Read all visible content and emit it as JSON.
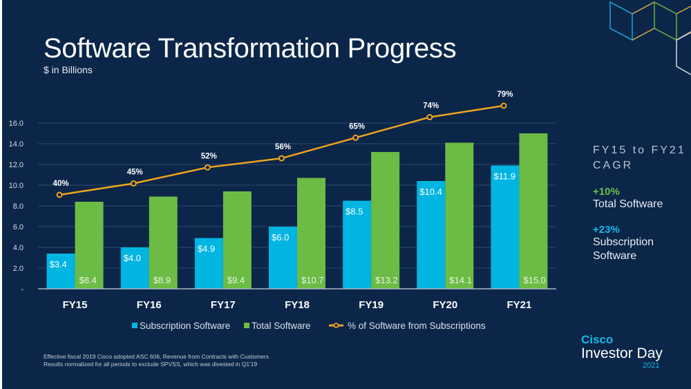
{
  "slide": {
    "title": "Software Transformation Progress",
    "subtitle": "$ in Billions",
    "footnote": [
      "Effective fiscal 2019 Cisco adopted ASC 606, Revenue from Contracts with Customers",
      "Results normalized for all periods to exclude SPVSS, which was divested in Q1'19"
    ],
    "cagr": {
      "title": "FY15 to FY21 CAGR",
      "items": [
        {
          "value": "+10%",
          "label_line1": "Total Software",
          "label_line2": "",
          "color": "#6cc04a"
        },
        {
          "value": "+23%",
          "label_line1": "Subscription",
          "label_line2": "Software",
          "color": "#1ab7ea"
        }
      ]
    },
    "brand": {
      "company": "Cisco",
      "event": "Investor Day",
      "year": "2021"
    },
    "colors": {
      "background": "#0b2648",
      "subscription": "#00b5e2",
      "total": "#6cbb45",
      "line": "#f2a51c"
    }
  },
  "chart_data": {
    "type": "bar",
    "title": "Software Transformation Progress",
    "subtitle": "$ in Billions",
    "xlabel": "",
    "ylabel": "",
    "ylim": [
      0,
      16
    ],
    "yticks": [
      0,
      2,
      4,
      6,
      8,
      10,
      12,
      14,
      16
    ],
    "ytick_labels": [
      "-",
      "2.0",
      "4.0",
      "6.0",
      "8.0",
      "10.0",
      "12.0",
      "14.0",
      "16.0"
    ],
    "grid": true,
    "legend_position": "bottom",
    "categories": [
      "FY15",
      "FY16",
      "FY17",
      "FY18",
      "FY19",
      "FY20",
      "FY21"
    ],
    "series": [
      {
        "name": "Subscription Software",
        "type": "bar",
        "values": [
          3.4,
          4.0,
          4.9,
          6.0,
          8.5,
          10.4,
          11.9
        ],
        "labels": [
          "$3.4",
          "$4.0",
          "$4.9",
          "$6.0",
          "$8.5",
          "$10.4",
          "$11.9"
        ]
      },
      {
        "name": "Total Software",
        "type": "bar",
        "values": [
          8.4,
          8.9,
          9.4,
          10.7,
          13.2,
          14.1,
          15.0
        ],
        "labels": [
          "$8.4",
          "$8.9",
          "$9.4",
          "$10.7",
          "$13.2",
          "$14.1",
          "$15.0"
        ]
      },
      {
        "name": "% of Software from Subscriptions",
        "type": "line",
        "values": [
          40,
          45,
          52,
          56,
          65,
          74,
          79
        ],
        "labels": [
          "40%",
          "45%",
          "52%",
          "56%",
          "65%",
          "74%",
          "79%"
        ],
        "unit": "%"
      }
    ]
  }
}
